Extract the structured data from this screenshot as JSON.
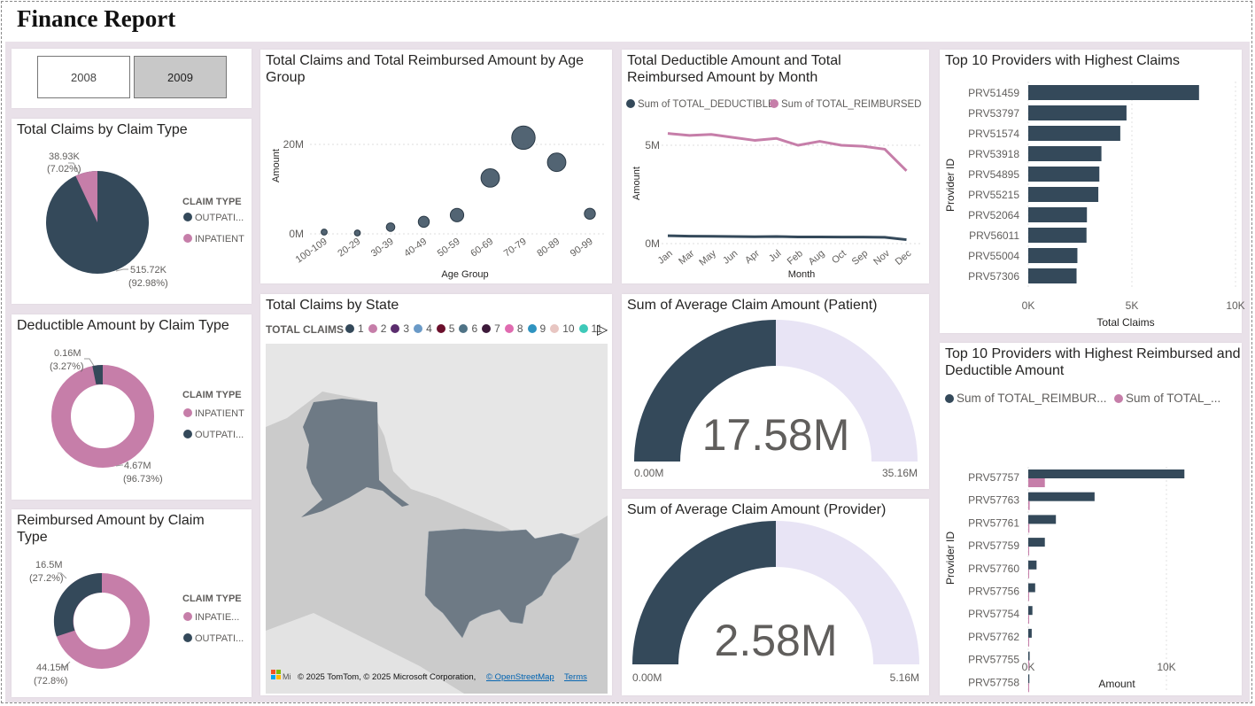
{
  "report_title": "Finance Report",
  "colors": {
    "dark": "#34495a",
    "pink": "#c67ea9",
    "gauge_bg": "#e8e4f5",
    "canvas": "#e9e1e9"
  },
  "slicer": {
    "options": [
      "2008",
      "2009"
    ],
    "selected": "2009"
  },
  "claims_by_type": {
    "title": "Total Claims by Claim Type",
    "legend_title": "CLAIM TYPE",
    "legend": [
      "OUTPATI...",
      "INPATIENT"
    ],
    "labels": {
      "inpatient_value": "38.93K",
      "inpatient_pct": "(7.02%)",
      "outpatient_value": "515.72K",
      "outpatient_pct": "(92.98%)"
    }
  },
  "deductible_by_type": {
    "title": "Deductible Amount by Claim Type",
    "legend_title": "CLAIM TYPE",
    "legend": [
      "INPATIENT",
      "OUTPATI..."
    ],
    "labels": {
      "outpatient_value": "0.16M",
      "outpatient_pct": "(3.27%)",
      "inpatient_value": "4.67M",
      "inpatient_pct": "(96.73%)"
    }
  },
  "reimbursed_by_type": {
    "title": "Reimbursed Amount by Claim Type",
    "legend_title": "CLAIM TYPE",
    "legend": [
      "INPATIE...",
      "OUTPATI..."
    ],
    "labels": {
      "outpatient_value": "16.5M",
      "outpatient_pct": "(27.2%)",
      "inpatient_value": "44.15M",
      "inpatient_pct": "(72.8%)"
    }
  },
  "age_group_chart": {
    "title": "Total Claims and Total Reimbursed Amount by Age Group",
    "xlabel": "Age Group",
    "ylabel": "Amount",
    "yticks": [
      "20M",
      "0M"
    ]
  },
  "month_chart": {
    "title": "Total Deductible Amount and Total Reimbursed Amount by Month",
    "legend": [
      "Sum of TOTAL_DEDUCTIBLE",
      "Sum of TOTAL_REIMBURSED"
    ],
    "xlabel": "Month",
    "ylabel": "Amount",
    "yticks": [
      "5M",
      "0M"
    ]
  },
  "state_map": {
    "title": "Total Claims by State",
    "legend_title": "TOTAL CLAIMS",
    "legend": [
      {
        "label": "1",
        "color": "#34495a"
      },
      {
        "label": "2",
        "color": "#c67ea9"
      },
      {
        "label": "3",
        "color": "#5b2d6e"
      },
      {
        "label": "4",
        "color": "#6a9ac7"
      },
      {
        "label": "5",
        "color": "#6b0f2b"
      },
      {
        "label": "6",
        "color": "#4f7386"
      },
      {
        "label": "7",
        "color": "#3d1a3a"
      },
      {
        "label": "8",
        "color": "#e06bb0"
      },
      {
        "label": "9",
        "color": "#2f93c0"
      },
      {
        "label": "10",
        "color": "#e8c6c2"
      },
      {
        "label": "11",
        "color": "#3ec9b9"
      }
    ],
    "copyright": "© 2025 TomTom, © 2025 Microsoft Corporation,",
    "osm_link": "© OpenStreetMap",
    "terms": "Terms",
    "brand": "Mi"
  },
  "gauge_patient": {
    "title": "Sum of Average Claim Amount (Patient)",
    "value": "17.58M",
    "min": "0.00M",
    "max": "35.16M",
    "fraction": 0.5
  },
  "gauge_provider": {
    "title": "Sum of Average Claim Amount (Provider)",
    "value": "2.58M",
    "min": "0.00M",
    "max": "5.16M",
    "fraction": 0.5
  },
  "top_claims": {
    "title": "Top 10 Providers with Highest Claims",
    "ylabel": "Provider ID",
    "xlabel": "Total Claims",
    "xticks": [
      "0K",
      "5K",
      "10K"
    ]
  },
  "top_reimb": {
    "title": "Top 10 Providers with Highest Reimbursed and Deductible Amount",
    "legend": [
      "Sum of TOTAL_REIMBUR...",
      "Sum of TOTAL_..."
    ],
    "ylabel": "Provider ID",
    "xlabel": "Amount",
    "xticks": [
      "0K",
      "10K"
    ]
  },
  "chart_data": [
    {
      "type": "pie",
      "title": "Total Claims by Claim Type",
      "categories": [
        "OUTPATIENT",
        "INPATIENT"
      ],
      "values": [
        515720,
        38930
      ],
      "percent": [
        92.98,
        7.02
      ]
    },
    {
      "type": "pie",
      "title": "Deductible Amount by Claim Type",
      "categories": [
        "INPATIENT",
        "OUTPATIENT"
      ],
      "values": [
        4670000,
        160000
      ],
      "percent": [
        96.73,
        3.27
      ]
    },
    {
      "type": "pie",
      "title": "Reimbursed Amount by Claim Type",
      "categories": [
        "INPATIENT",
        "OUTPATIENT"
      ],
      "values": [
        44150000,
        16500000
      ],
      "percent": [
        72.8,
        27.2
      ]
    },
    {
      "type": "scatter",
      "title": "Total Claims and Total Reimbursed Amount by Age Group",
      "xlabel": "Age Group",
      "ylabel": "Amount",
      "categories": [
        "100-109",
        "20-29",
        "30-39",
        "40-49",
        "50-59",
        "60-69",
        "70-79",
        "80-89",
        "90-99"
      ],
      "values": [
        400000,
        200000,
        1500000,
        2700000,
        4200000,
        12500000,
        21500000,
        16000000,
        4500000
      ],
      "size": [
        1,
        1,
        2,
        3,
        4,
        6,
        8,
        6,
        3
      ],
      "ylim": [
        0,
        25000000
      ]
    },
    {
      "type": "line",
      "title": "Total Deductible Amount and Total Reimbursed Amount by Month",
      "xlabel": "Month",
      "ylabel": "Amount",
      "categories": [
        "Jan",
        "Mar",
        "May",
        "Jun",
        "Apr",
        "Jul",
        "Feb",
        "Aug",
        "Oct",
        "Sep",
        "Nov",
        "Dec"
      ],
      "series": [
        {
          "name": "Sum of TOTAL_DEDUCTIBLE",
          "values": [
            400000,
            380000,
            370000,
            360000,
            350000,
            360000,
            340000,
            340000,
            330000,
            330000,
            320000,
            200000
          ]
        },
        {
          "name": "Sum of TOTAL_REIMBURSED",
          "values": [
            5600000,
            5500000,
            5550000,
            5400000,
            5250000,
            5350000,
            5000000,
            5200000,
            5000000,
            4950000,
            4800000,
            3700000
          ]
        }
      ],
      "ylim": [
        0,
        6000000
      ]
    },
    {
      "type": "bar",
      "title": "Top 10 Providers with Highest Claims",
      "xlabel": "Total Claims",
      "ylabel": "Provider ID",
      "categories": [
        "PRV51459",
        "PRV53797",
        "PRV51574",
        "PRV53918",
        "PRV54895",
        "PRV55215",
        "PRV52064",
        "PRV56011",
        "PRV55004",
        "PRV57306"
      ],
      "values": [
        8240,
        4740,
        4440,
        3530,
        3430,
        3380,
        2830,
        2810,
        2370,
        2330
      ],
      "xlim": [
        0,
        10000
      ]
    },
    {
      "type": "bar",
      "title": "Top 10 Providers with Highest Reimbursed and Deductible Amount",
      "xlabel": "Amount",
      "ylabel": "Provider ID",
      "categories": [
        "PRV57757",
        "PRV57763",
        "PRV57761",
        "PRV57759",
        "PRV57760",
        "PRV57756",
        "PRV57754",
        "PRV57762",
        "PRV57755",
        "PRV57758"
      ],
      "series": [
        {
          "name": "Sum of TOTAL_REIMBURSED",
          "values": [
            11300,
            4800,
            2000,
            1200,
            600,
            500,
            300,
            250,
            100,
            80
          ]
        },
        {
          "name": "Sum of TOTAL_DEDUCTIBLE",
          "values": [
            1200,
            100,
            80,
            50,
            30,
            30,
            20,
            20,
            10,
            10
          ]
        }
      ],
      "xlim": [
        0,
        15000
      ]
    }
  ]
}
